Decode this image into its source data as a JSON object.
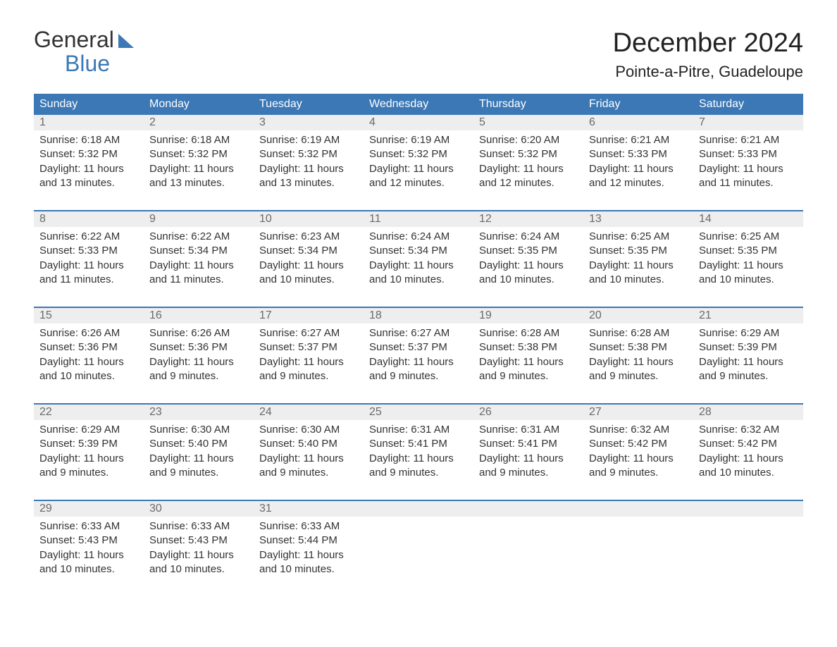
{
  "brand": {
    "top": "General",
    "bottom": "Blue"
  },
  "title": "December 2024",
  "location": "Pointe-a-Pitre, Guadeloupe",
  "colors": {
    "header_bg": "#3b78b5",
    "header_text": "#ffffff",
    "daynum_bg": "#eeeeee",
    "daynum_text": "#6a6a6a",
    "body_text": "#333333",
    "page_bg": "#ffffff",
    "week_divider": "#3b78b5",
    "logo_accent": "#3b78b5"
  },
  "layout": {
    "columns": 7,
    "title_fontsize": 38,
    "location_fontsize": 22,
    "dayheader_fontsize": 16,
    "cell_fontsize": 15
  },
  "day_headers": [
    "Sunday",
    "Monday",
    "Tuesday",
    "Wednesday",
    "Thursday",
    "Friday",
    "Saturday"
  ],
  "weeks": [
    [
      {
        "n": "1",
        "sunrise": "6:18 AM",
        "sunset": "5:32 PM",
        "daylight": "11 hours and 13 minutes."
      },
      {
        "n": "2",
        "sunrise": "6:18 AM",
        "sunset": "5:32 PM",
        "daylight": "11 hours and 13 minutes."
      },
      {
        "n": "3",
        "sunrise": "6:19 AM",
        "sunset": "5:32 PM",
        "daylight": "11 hours and 13 minutes."
      },
      {
        "n": "4",
        "sunrise": "6:19 AM",
        "sunset": "5:32 PM",
        "daylight": "11 hours and 12 minutes."
      },
      {
        "n": "5",
        "sunrise": "6:20 AM",
        "sunset": "5:32 PM",
        "daylight": "11 hours and 12 minutes."
      },
      {
        "n": "6",
        "sunrise": "6:21 AM",
        "sunset": "5:33 PM",
        "daylight": "11 hours and 12 minutes."
      },
      {
        "n": "7",
        "sunrise": "6:21 AM",
        "sunset": "5:33 PM",
        "daylight": "11 hours and 11 minutes."
      }
    ],
    [
      {
        "n": "8",
        "sunrise": "6:22 AM",
        "sunset": "5:33 PM",
        "daylight": "11 hours and 11 minutes."
      },
      {
        "n": "9",
        "sunrise": "6:22 AM",
        "sunset": "5:34 PM",
        "daylight": "11 hours and 11 minutes."
      },
      {
        "n": "10",
        "sunrise": "6:23 AM",
        "sunset": "5:34 PM",
        "daylight": "11 hours and 10 minutes."
      },
      {
        "n": "11",
        "sunrise": "6:24 AM",
        "sunset": "5:34 PM",
        "daylight": "11 hours and 10 minutes."
      },
      {
        "n": "12",
        "sunrise": "6:24 AM",
        "sunset": "5:35 PM",
        "daylight": "11 hours and 10 minutes."
      },
      {
        "n": "13",
        "sunrise": "6:25 AM",
        "sunset": "5:35 PM",
        "daylight": "11 hours and 10 minutes."
      },
      {
        "n": "14",
        "sunrise": "6:25 AM",
        "sunset": "5:35 PM",
        "daylight": "11 hours and 10 minutes."
      }
    ],
    [
      {
        "n": "15",
        "sunrise": "6:26 AM",
        "sunset": "5:36 PM",
        "daylight": "11 hours and 10 minutes."
      },
      {
        "n": "16",
        "sunrise": "6:26 AM",
        "sunset": "5:36 PM",
        "daylight": "11 hours and 9 minutes."
      },
      {
        "n": "17",
        "sunrise": "6:27 AM",
        "sunset": "5:37 PM",
        "daylight": "11 hours and 9 minutes."
      },
      {
        "n": "18",
        "sunrise": "6:27 AM",
        "sunset": "5:37 PM",
        "daylight": "11 hours and 9 minutes."
      },
      {
        "n": "19",
        "sunrise": "6:28 AM",
        "sunset": "5:38 PM",
        "daylight": "11 hours and 9 minutes."
      },
      {
        "n": "20",
        "sunrise": "6:28 AM",
        "sunset": "5:38 PM",
        "daylight": "11 hours and 9 minutes."
      },
      {
        "n": "21",
        "sunrise": "6:29 AM",
        "sunset": "5:39 PM",
        "daylight": "11 hours and 9 minutes."
      }
    ],
    [
      {
        "n": "22",
        "sunrise": "6:29 AM",
        "sunset": "5:39 PM",
        "daylight": "11 hours and 9 minutes."
      },
      {
        "n": "23",
        "sunrise": "6:30 AM",
        "sunset": "5:40 PM",
        "daylight": "11 hours and 9 minutes."
      },
      {
        "n": "24",
        "sunrise": "6:30 AM",
        "sunset": "5:40 PM",
        "daylight": "11 hours and 9 minutes."
      },
      {
        "n": "25",
        "sunrise": "6:31 AM",
        "sunset": "5:41 PM",
        "daylight": "11 hours and 9 minutes."
      },
      {
        "n": "26",
        "sunrise": "6:31 AM",
        "sunset": "5:41 PM",
        "daylight": "11 hours and 9 minutes."
      },
      {
        "n": "27",
        "sunrise": "6:32 AM",
        "sunset": "5:42 PM",
        "daylight": "11 hours and 9 minutes."
      },
      {
        "n": "28",
        "sunrise": "6:32 AM",
        "sunset": "5:42 PM",
        "daylight": "11 hours and 10 minutes."
      }
    ],
    [
      {
        "n": "29",
        "sunrise": "6:33 AM",
        "sunset": "5:43 PM",
        "daylight": "11 hours and 10 minutes."
      },
      {
        "n": "30",
        "sunrise": "6:33 AM",
        "sunset": "5:43 PM",
        "daylight": "11 hours and 10 minutes."
      },
      {
        "n": "31",
        "sunrise": "6:33 AM",
        "sunset": "5:44 PM",
        "daylight": "11 hours and 10 minutes."
      },
      null,
      null,
      null,
      null
    ]
  ],
  "labels": {
    "sunrise": "Sunrise:",
    "sunset": "Sunset:",
    "daylight": "Daylight:"
  }
}
